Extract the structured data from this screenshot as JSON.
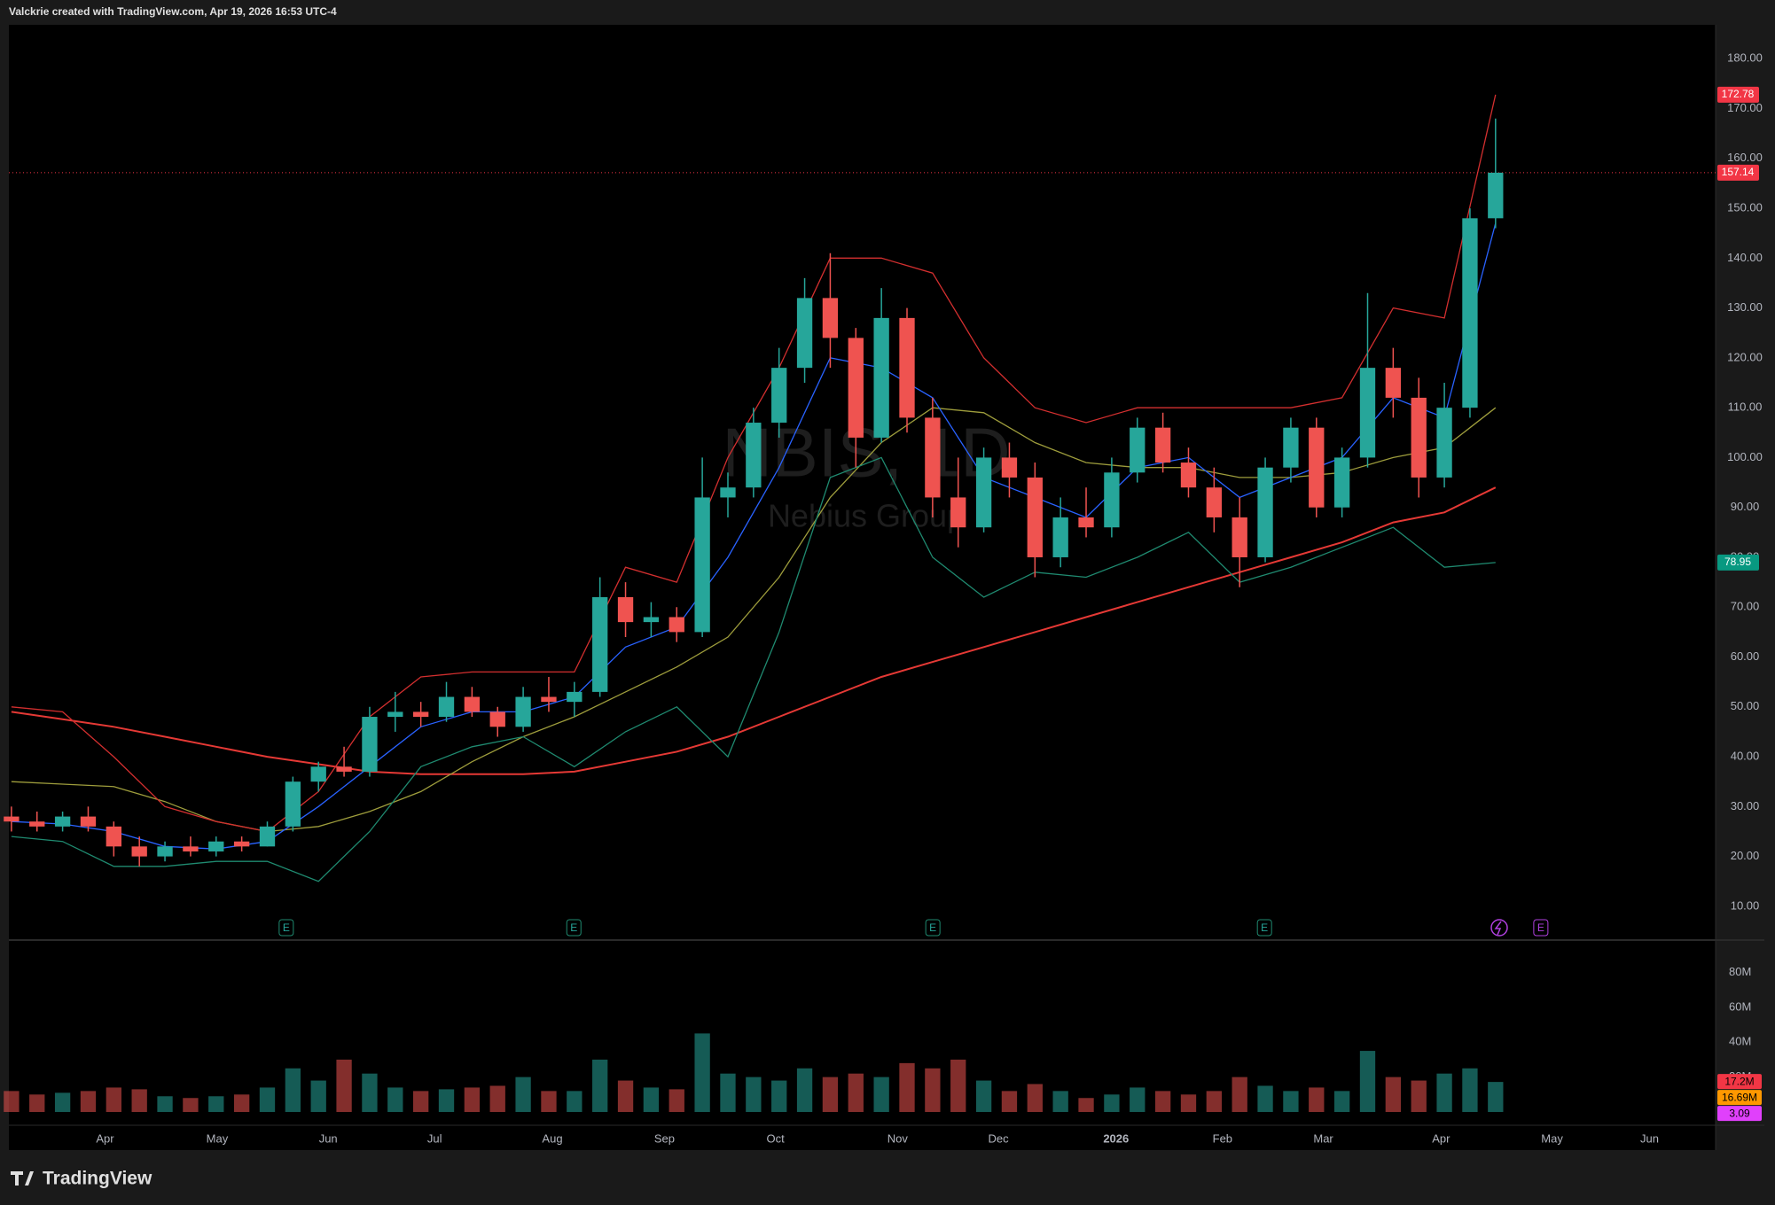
{
  "chart_data": {
    "type": "candlestick",
    "header": "Valckrie created with TradingView.com, Apr 19, 2026 16:53 UTC-4",
    "watermark": {
      "symbol": "NBIS, 1D",
      "name": "Nebius Group"
    },
    "brand": "TradingView",
    "up_color": "#26a69a",
    "down_color": "#ef5350",
    "xlim": [
      0,
      66.7
    ],
    "xticks": [
      {
        "value": 3.76,
        "label": "Apr"
      },
      {
        "value": 8.14,
        "label": "May"
      },
      {
        "value": 12.48,
        "label": "Jun"
      },
      {
        "value": 16.64,
        "label": "Jul"
      },
      {
        "value": 21.24,
        "label": "Aug"
      },
      {
        "value": 25.62,
        "label": "Sep"
      },
      {
        "value": 29.96,
        "label": "Oct"
      },
      {
        "value": 34.73,
        "label": "Nov"
      },
      {
        "value": 38.67,
        "label": "Dec"
      },
      {
        "value": 43.27,
        "label": "2026"
      },
      {
        "value": 47.43,
        "label": "Feb"
      },
      {
        "value": 51.37,
        "label": "Mar"
      },
      {
        "value": 55.97,
        "label": "Apr"
      },
      {
        "value": 60.31,
        "label": "May"
      },
      {
        "value": 64.12,
        "label": "Jun"
      }
    ],
    "ylim": [
      3.4,
      186.8
    ],
    "yticks": [
      {
        "value": 10,
        "label": "10.00"
      },
      {
        "value": 20,
        "label": "20.00"
      },
      {
        "value": 30,
        "label": "30.00"
      },
      {
        "value": 40,
        "label": "40.00"
      },
      {
        "value": 50,
        "label": "50.00"
      },
      {
        "value": 60,
        "label": "60.00"
      },
      {
        "value": 70,
        "label": "70.00"
      },
      {
        "value": 80,
        "label": "80.00"
      },
      {
        "value": 90,
        "label": "90.00"
      },
      {
        "value": 100,
        "label": "100.00"
      },
      {
        "value": 110,
        "label": "110.00"
      },
      {
        "value": 120,
        "label": "120.00"
      },
      {
        "value": 130,
        "label": "130.00"
      },
      {
        "value": 140,
        "label": "140.00"
      },
      {
        "value": 150,
        "label": "150.00"
      },
      {
        "value": 160,
        "label": "160.00"
      },
      {
        "value": 170,
        "label": "170.00"
      },
      {
        "value": 180,
        "label": "180.00"
      }
    ],
    "x": [
      0.1,
      1.1,
      2.1,
      3.1,
      4.1,
      5.1,
      6.1,
      7.1,
      8.1,
      9.1,
      10.1,
      11.1,
      12.1,
      13.1,
      14.1,
      15.1,
      16.1,
      17.1,
      18.1,
      19.1,
      20.1,
      21.1,
      22.1,
      23.1,
      24.1,
      25.1,
      26.1,
      27.1,
      28.1,
      29.1,
      30.1,
      31.1,
      32.1,
      33.1,
      34.1,
      35.1,
      36.1,
      37.1,
      38.1,
      39.1,
      40.1,
      41.1,
      42.1,
      43.1,
      44.1,
      45.1,
      46.1,
      47.1,
      48.1,
      49.1,
      50.1,
      51.1,
      52.1,
      53.1,
      54.1,
      55.1,
      56.1,
      57.1,
      58.1
    ],
    "open": [
      28,
      27,
      26,
      28,
      26,
      22,
      20,
      22,
      21,
      23,
      22,
      26,
      35,
      38,
      37,
      48,
      49,
      48,
      52,
      49,
      46,
      52,
      51,
      53,
      72,
      67,
      68,
      65,
      92,
      94,
      107,
      118,
      132,
      124,
      104,
      128,
      108,
      92,
      86,
      100,
      96,
      80,
      88,
      86,
      97,
      106,
      99,
      94,
      88,
      80,
      98,
      106,
      90,
      100,
      118,
      112,
      96,
      110,
      148
    ],
    "high": [
      30,
      29,
      29,
      30,
      27,
      24,
      23,
      24,
      24,
      24,
      27,
      36,
      39,
      42,
      50,
      53,
      51,
      55,
      54,
      50,
      54,
      56,
      55,
      76,
      75,
      71,
      70,
      100,
      97,
      110,
      122,
      136,
      141,
      126,
      134,
      130,
      112,
      100,
      102,
      103,
      99,
      92,
      94,
      100,
      108,
      109,
      102,
      98,
      92,
      100,
      108,
      108,
      102,
      133,
      122,
      116,
      115,
      150,
      168
    ],
    "low": [
      25,
      25,
      25,
      25,
      20,
      18,
      19,
      20,
      20,
      21,
      22,
      25,
      33,
      36,
      36,
      45,
      46,
      47,
      48,
      44,
      45,
      49,
      48,
      52,
      64,
      64,
      63,
      64,
      88,
      92,
      104,
      115,
      118,
      98,
      103,
      105,
      88,
      82,
      85,
      92,
      76,
      78,
      84,
      84,
      95,
      97,
      92,
      85,
      74,
      79,
      95,
      88,
      88,
      98,
      108,
      92,
      94,
      108,
      146
    ],
    "close": [
      27,
      26,
      28,
      26,
      22,
      20,
      22,
      21,
      23,
      22,
      26,
      35,
      38,
      37,
      48,
      49,
      48,
      52,
      49,
      46,
      52,
      51,
      53,
      72,
      67,
      68,
      65,
      92,
      94,
      107,
      118,
      132,
      124,
      104,
      128,
      108,
      92,
      86,
      100,
      96,
      80,
      88,
      86,
      97,
      106,
      99,
      94,
      88,
      80,
      98,
      106,
      90,
      100,
      118,
      112,
      96,
      110,
      148,
      157.14
    ],
    "overlay_x": [
      0.1,
      2.1,
      4.1,
      6.1,
      8.1,
      10.1,
      12.1,
      14.1,
      16.1,
      18.1,
      20.1,
      22.1,
      24.1,
      26.1,
      28.1,
      30.1,
      32.1,
      34.1,
      36.1,
      38.1,
      40.1,
      42.1,
      44.1,
      46.1,
      48.1,
      50.1,
      52.1,
      54.1,
      56.1,
      58.1
    ],
    "overlays": [
      {
        "color": "#e53935",
        "values": [
          49,
          47.5,
          46,
          44,
          42,
          40,
          38.5,
          37,
          36.5,
          36.5,
          36.5,
          37,
          39,
          41,
          44,
          48,
          52,
          56,
          59,
          62,
          65,
          68,
          71,
          74,
          77,
          80,
          83,
          87,
          89,
          94
        ]
      },
      {
        "color": "#9e9d3c",
        "values": [
          35,
          34.5,
          34,
          31,
          27,
          25,
          26,
          29,
          33,
          39,
          44,
          48,
          53,
          58,
          64,
          76,
          92,
          103,
          110,
          109,
          103,
          99,
          98,
          98,
          96,
          96,
          97,
          100,
          102,
          110
        ]
      },
      {
        "color": "#2962ff",
        "values": [
          27,
          26.5,
          25,
          22,
          21.5,
          23,
          30,
          38,
          46,
          49,
          49,
          52,
          62,
          66,
          80,
          98,
          120,
          118,
          112,
          96,
          92,
          88,
          98,
          100,
          92,
          96,
          100,
          112,
          108,
          147
        ]
      },
      {
        "color": "#d32f2f",
        "values": [
          50,
          49,
          40,
          30,
          27,
          25,
          33,
          48,
          56,
          57,
          57,
          57,
          78,
          75,
          100,
          118,
          140,
          140,
          137,
          120,
          110,
          107,
          110,
          110,
          110,
          110,
          112,
          130,
          128,
          172.78
        ]
      },
      {
        "color": "#1f8a70",
        "values": [
          24,
          23,
          18,
          18,
          19,
          19,
          15,
          25,
          38,
          42,
          44,
          38,
          45,
          50,
          40,
          65,
          96,
          100,
          80,
          72,
          77,
          76,
          80,
          85,
          75,
          78,
          82,
          86,
          78,
          78.95
        ]
      }
    ],
    "price_badges": [
      {
        "path": "overlays.3.values.29",
        "color": "#f23645"
      },
      {
        "path": "close.58",
        "color": "#f23645"
      },
      {
        "path": "overlays.4.values.29",
        "color": "#089981"
      }
    ],
    "volume": {
      "ylim": [
        0,
        98
      ],
      "yticks": [
        {
          "value": 20,
          "label": "20M"
        },
        {
          "value": 40,
          "label": "40M"
        },
        {
          "value": 60,
          "label": "60M"
        },
        {
          "value": 80,
          "label": "80M"
        }
      ],
      "values": [
        12,
        10,
        11,
        12,
        14,
        13,
        9,
        8,
        9,
        10,
        14,
        25,
        18,
        30,
        22,
        14,
        12,
        13,
        14,
        15,
        20,
        12,
        12,
        30,
        18,
        14,
        13,
        45,
        22,
        20,
        18,
        25,
        20,
        22,
        20,
        28,
        25,
        30,
        18,
        12,
        16,
        12,
        8,
        10,
        14,
        12,
        10,
        12,
        20,
        15,
        12,
        14,
        12,
        35,
        20,
        18,
        22,
        25,
        17.2
      ],
      "badges": [
        {
          "value": 17.2,
          "label": "17.2M",
          "color": "#f23645"
        },
        {
          "value": 16.69,
          "label": "16.69M",
          "color": "#ff9800"
        },
        {
          "value": 3.09,
          "color": "#e040fb"
        }
      ]
    },
    "events": [
      {
        "x": 10.84,
        "label": "E"
      },
      {
        "x": 22.08,
        "label": "E"
      },
      {
        "x": 36.11,
        "label": "E"
      },
      {
        "x": 49.07,
        "label": "E"
      },
      {
        "x": 59.87,
        "label": "E"
      }
    ]
  }
}
